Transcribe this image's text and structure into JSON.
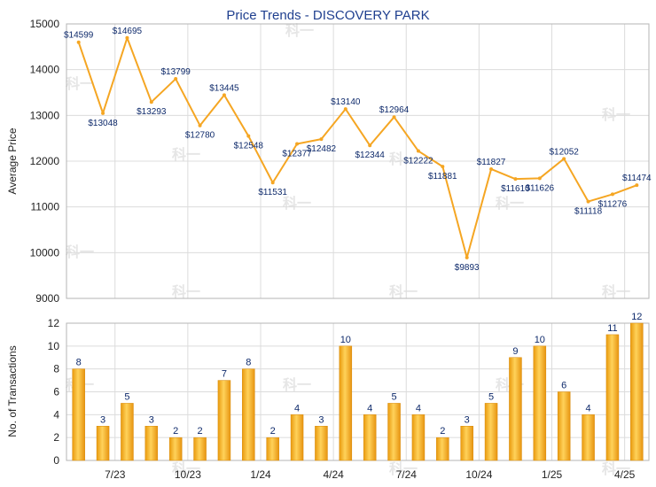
{
  "chart_data": [
    {
      "type": "line",
      "title": "Price Trends - DISCOVERY PARK",
      "ylabel": "Average Price",
      "ylim": [
        9000,
        15000
      ],
      "yticks": [
        9000,
        10000,
        11000,
        12000,
        13000,
        14000,
        15000
      ],
      "color": "#f5a623",
      "series": [
        {
          "values": [
            14599,
            13048,
            14695,
            13293,
            13799,
            12780,
            13445,
            12548,
            11531,
            12377,
            12482,
            13140,
            12344,
            12964,
            12222,
            11881,
            9893,
            11827,
            11610,
            11626,
            12052,
            11118,
            11276,
            11474
          ],
          "labels": [
            "$14599",
            "$13048",
            "$14695",
            "$13293",
            "$13799",
            "$12780",
            "$13445",
            "$12548",
            "$11531",
            "$12377",
            "$12482",
            "$13140",
            "$12344",
            "$12964",
            "$12222",
            "$11881",
            "$9893",
            "$11827",
            "$11610",
            "$11626",
            "$12052",
            "$11118",
            "$11276",
            "$11474"
          ]
        }
      ]
    },
    {
      "type": "bar",
      "ylabel": "No. of Transactions",
      "ylim": [
        0,
        12
      ],
      "yticks": [
        0,
        2,
        4,
        6,
        8,
        10,
        12
      ],
      "xticks": [
        "7/23",
        "10/23",
        "1/24",
        "4/24",
        "7/24",
        "10/24",
        "1/25",
        "4/25"
      ],
      "bar_color": "#f5b21f",
      "values": [
        8,
        3,
        5,
        3,
        2,
        2,
        7,
        8,
        2,
        4,
        3,
        10,
        4,
        5,
        4,
        2,
        3,
        5,
        9,
        10,
        6,
        4,
        11,
        12
      ]
    }
  ],
  "watermark": "科一"
}
